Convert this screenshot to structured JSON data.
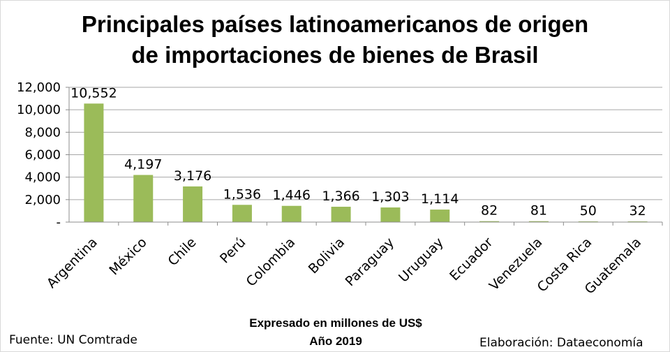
{
  "chart_data": {
    "type": "bar",
    "title_line1": "Principales países latinoamericanos de origen",
    "title_line2": "de importaciones de bienes de Brasil",
    "xlabel_line1": "Expresado en millones de US$",
    "xlabel_line2": "Año 2019",
    "ylabel": "",
    "ylim": [
      0,
      12000
    ],
    "yticks": [
      0,
      2000,
      4000,
      6000,
      8000,
      10000,
      12000
    ],
    "ytick_labels": [
      "-",
      "2,000",
      "4,000",
      "6,000",
      "8,000",
      "10,000",
      "12,000"
    ],
    "grid": true,
    "bar_color": "#9bbb59",
    "categories": [
      "Argentina",
      "México",
      "Chile",
      "Perú",
      "Colombia",
      "Bolivia",
      "Paraguay",
      "Uruguay",
      "Ecuador",
      "Venezuela",
      "Costa Rica",
      "Guatemala"
    ],
    "values": [
      10552,
      4197,
      3176,
      1536,
      1446,
      1366,
      1303,
      1114,
      82,
      81,
      50,
      32
    ],
    "value_labels": [
      "10,552",
      "4,197",
      "3,176",
      "1,536",
      "1,446",
      "1,366",
      "1,303",
      "1,114",
      "82",
      "81",
      "50",
      "32"
    ]
  },
  "footer": {
    "source": "Fuente: UN Comtrade",
    "credit": "Elaboración: Dataeconomía"
  }
}
